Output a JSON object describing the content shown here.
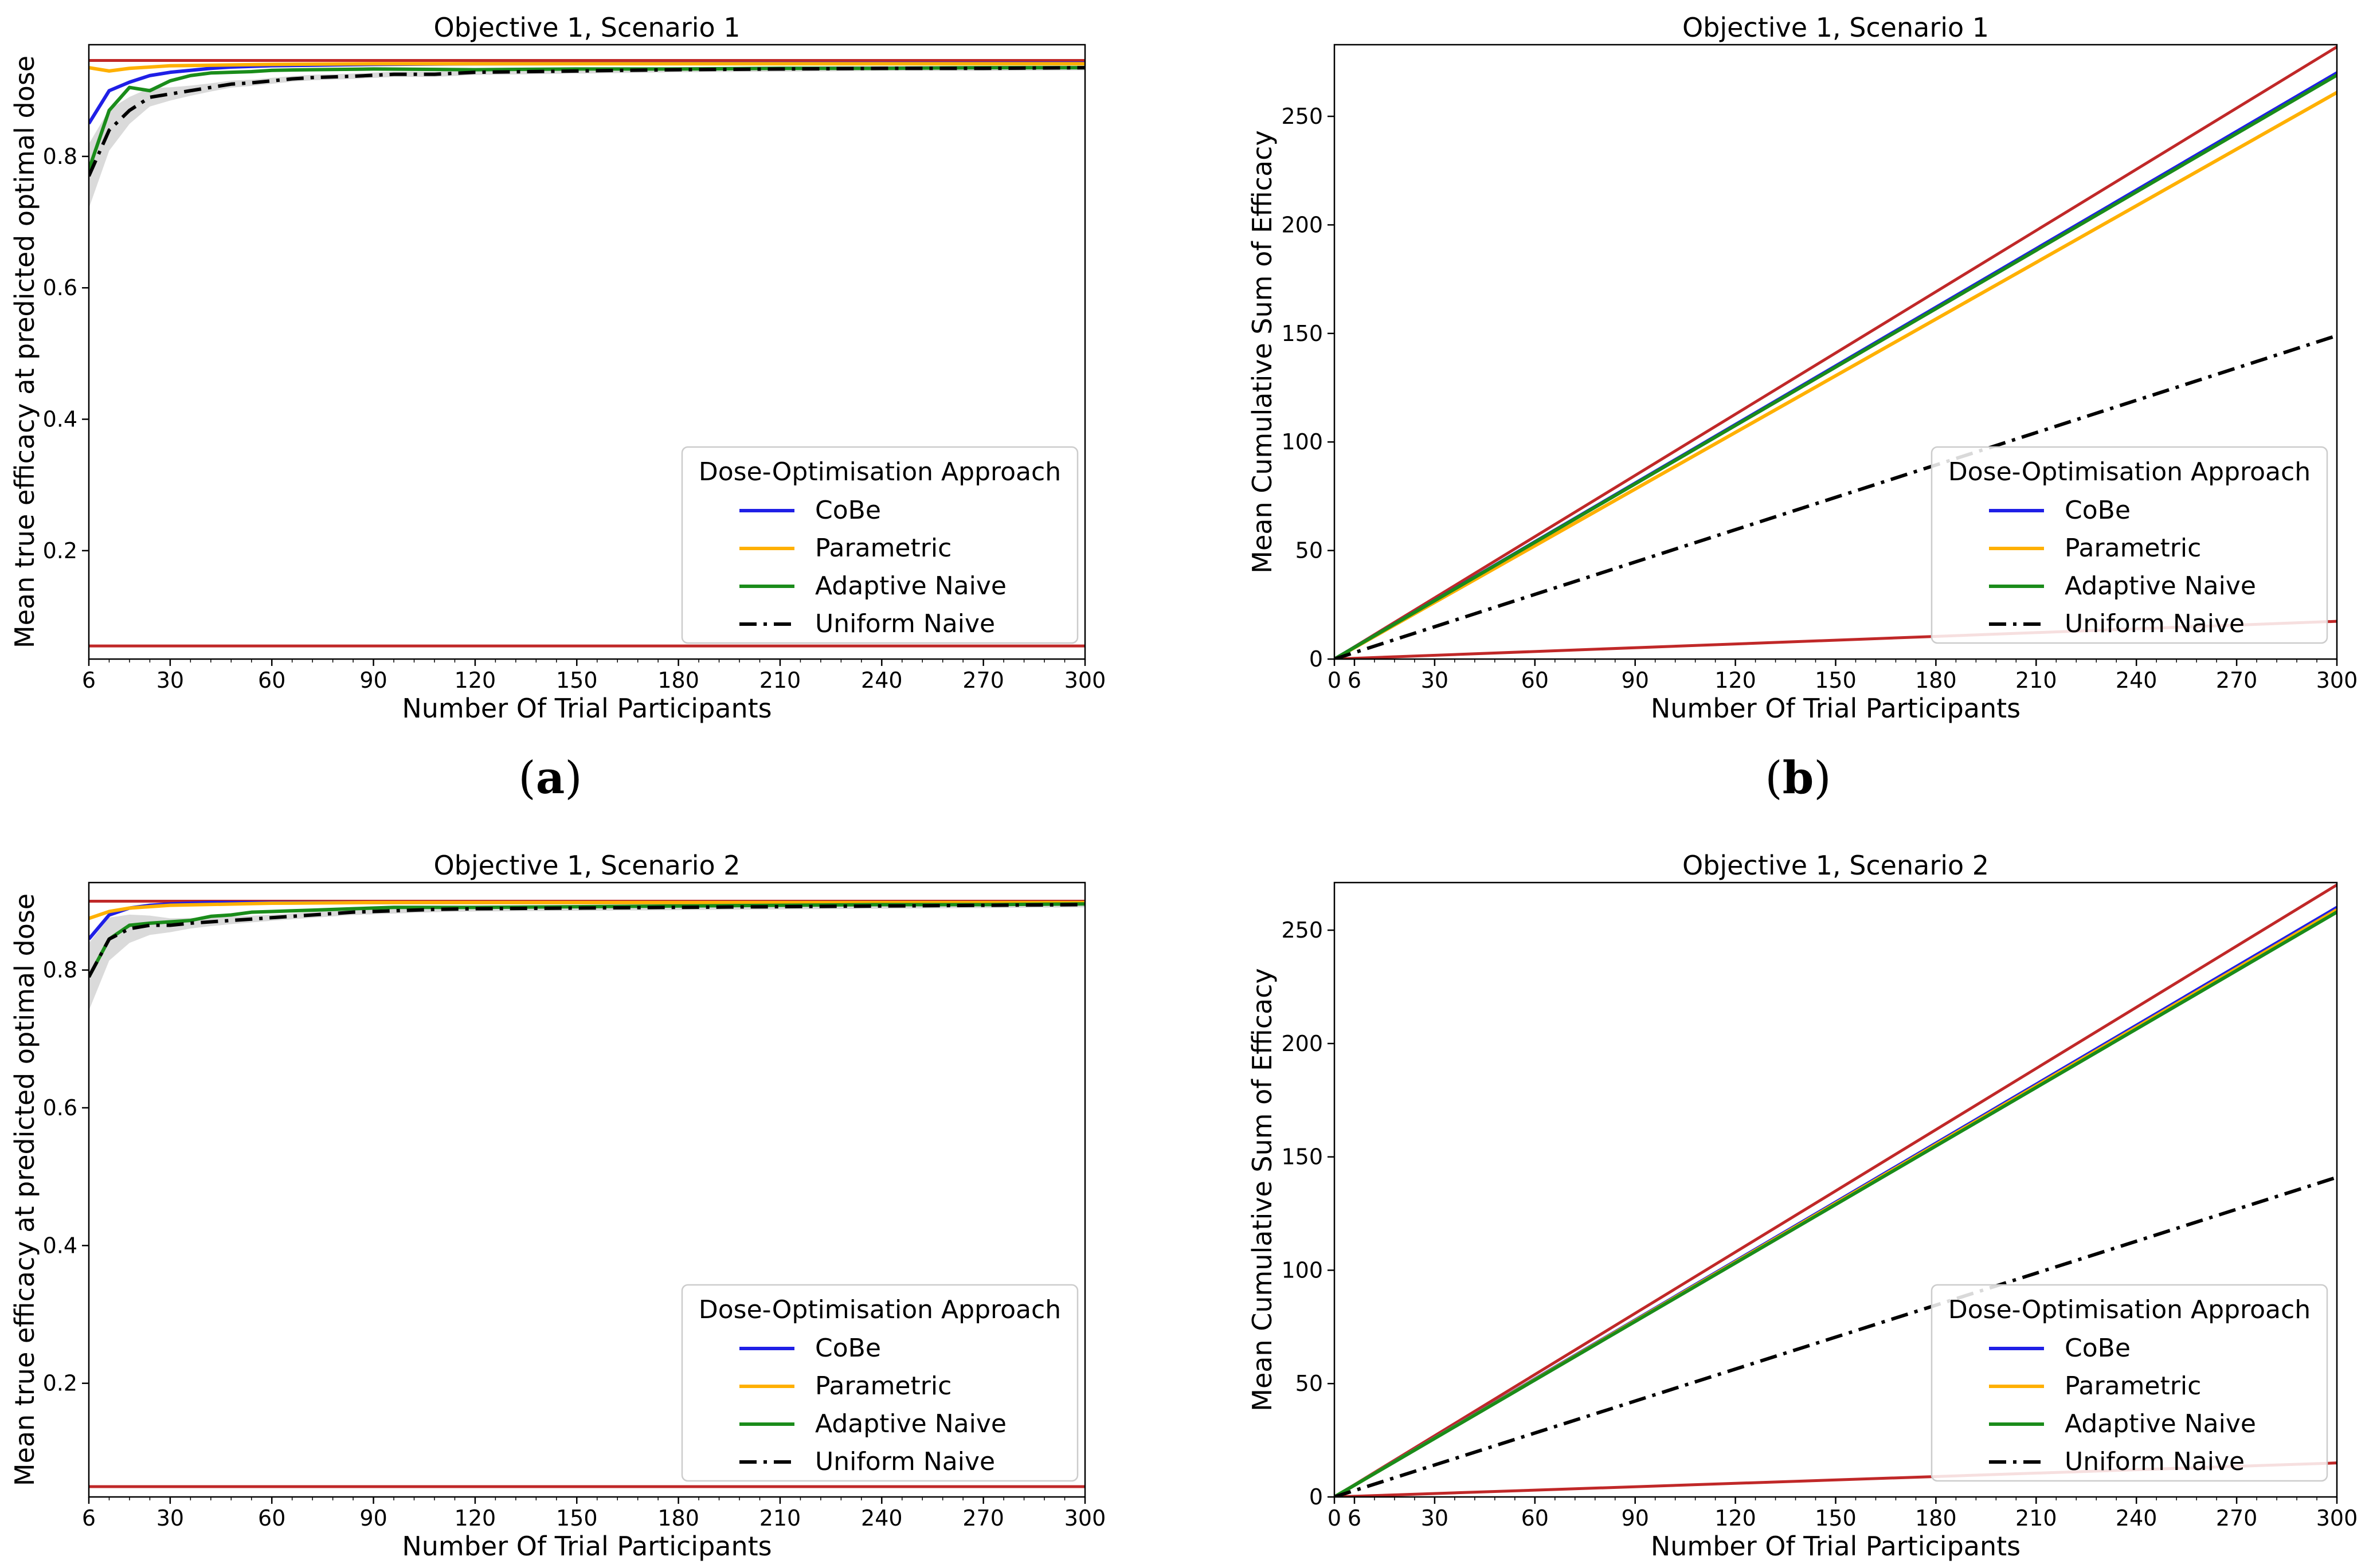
{
  "figure": {
    "subfigure_labels": [
      {
        "open": "(",
        "letter": "a",
        "close": ")"
      },
      {
        "open": "(",
        "letter": "b",
        "close": ")"
      }
    ]
  },
  "legend": {
    "title": "Dose-Optimisation Approach",
    "items": [
      {
        "label": "CoBe",
        "color": "#1f1fe6",
        "dash": "solid"
      },
      {
        "label": "Parametric",
        "color": "#ffb000",
        "dash": "solid"
      },
      {
        "label": "Adaptive Naive",
        "color": "#1a8c1a",
        "dash": "solid"
      },
      {
        "label": "Uniform Naive",
        "color": "#000000",
        "dash": "dashdot"
      }
    ]
  },
  "colors": {
    "reference": "#c02828",
    "band": "#d3d3d3",
    "frame": "#000000"
  },
  "chart_data": [
    {
      "type": "line",
      "title": "Objective 1, Scenario 1",
      "xlabel": "Number Of Trial Participants",
      "ylabel": "Mean true efficacy at predicted optimal dose",
      "xlim": [
        6,
        300
      ],
      "ylim": [
        0.035,
        0.97
      ],
      "xticks": [
        6,
        30,
        60,
        90,
        120,
        150,
        180,
        210,
        240,
        270,
        300
      ],
      "yticks": [
        0.2,
        0.4,
        0.6,
        0.8
      ],
      "reference_lines": [
        0.946,
        0.055
      ],
      "series": [
        {
          "name": "CoBe",
          "x": [
            6,
            12,
            18,
            24,
            30,
            36,
            42,
            48,
            60,
            90,
            120,
            300
          ],
          "y": [
            0.85,
            0.9,
            0.913,
            0.923,
            0.928,
            0.931,
            0.934,
            0.936,
            0.938,
            0.94,
            0.941,
            0.942
          ]
        },
        {
          "name": "Parametric",
          "x": [
            6,
            12,
            18,
            30,
            60,
            90,
            300
          ],
          "y": [
            0.935,
            0.93,
            0.934,
            0.938,
            0.94,
            0.941,
            0.941
          ]
        },
        {
          "name": "Adaptive Naive",
          "x": [
            6,
            12,
            18,
            24,
            30,
            36,
            42,
            48,
            54,
            60,
            72,
            90,
            120,
            150,
            180,
            210,
            240,
            270,
            300
          ],
          "y": [
            0.78,
            0.87,
            0.905,
            0.9,
            0.915,
            0.923,
            0.927,
            0.928,
            0.929,
            0.931,
            0.932,
            0.933,
            0.932,
            0.933,
            0.933,
            0.934,
            0.934,
            0.935,
            0.935
          ]
        },
        {
          "name": "Uniform Naive",
          "x": [
            6,
            12,
            18,
            24,
            30,
            36,
            42,
            48,
            54,
            60,
            66,
            72,
            84,
            96,
            108,
            120,
            150,
            180,
            210,
            240,
            270,
            300
          ],
          "y": [
            0.77,
            0.84,
            0.87,
            0.89,
            0.895,
            0.9,
            0.905,
            0.91,
            0.912,
            0.915,
            0.918,
            0.92,
            0.922,
            0.925,
            0.925,
            0.928,
            0.93,
            0.932,
            0.933,
            0.934,
            0.934,
            0.935
          ]
        }
      ]
    },
    {
      "type": "line",
      "title": "Objective 1, Scenario 1",
      "xlabel": "Number Of Trial Participants",
      "ylabel": "Mean Cumulative Sum of Efficacy",
      "xlim": [
        0,
        300
      ],
      "ylim": [
        0,
        283
      ],
      "xticks": [
        0,
        6,
        30,
        60,
        90,
        120,
        150,
        180,
        210,
        240,
        270,
        300
      ],
      "yticks": [
        0,
        50,
        100,
        150,
        200,
        250
      ],
      "reference_lines_slope": [
        0.94,
        0.058
      ],
      "series": [
        {
          "name": "CoBe",
          "x": [
            0,
            300
          ],
          "y": [
            0,
            270
          ]
        },
        {
          "name": "Parametric",
          "x": [
            0,
            300
          ],
          "y": [
            0,
            261
          ]
        },
        {
          "name": "Adaptive Naive",
          "x": [
            0,
            300
          ],
          "y": [
            0,
            269
          ]
        },
        {
          "name": "Uniform Naive",
          "x": [
            0,
            300
          ],
          "y": [
            0,
            149
          ]
        }
      ]
    },
    {
      "type": "line",
      "title": "Objective 1, Scenario 2",
      "xlabel": "Number Of Trial Participants",
      "ylabel": "Mean true efficacy at predicted optimal dose",
      "xlim": [
        6,
        300
      ],
      "ylim": [
        0.035,
        0.927
      ],
      "xticks": [
        6,
        30,
        60,
        90,
        120,
        150,
        180,
        210,
        240,
        270,
        300
      ],
      "yticks": [
        0.2,
        0.4,
        0.6,
        0.8
      ],
      "reference_lines": [
        0.9,
        0.05
      ],
      "series": [
        {
          "name": "CoBe",
          "x": [
            6,
            12,
            18,
            24,
            30,
            36,
            42,
            60,
            90,
            300
          ],
          "y": [
            0.845,
            0.88,
            0.89,
            0.894,
            0.896,
            0.897,
            0.898,
            0.898,
            0.898,
            0.898
          ]
        },
        {
          "name": "Parametric",
          "x": [
            6,
            12,
            18,
            30,
            60,
            90,
            300
          ],
          "y": [
            0.875,
            0.885,
            0.89,
            0.894,
            0.897,
            0.898,
            0.898
          ]
        },
        {
          "name": "Adaptive Naive",
          "x": [
            6,
            12,
            18,
            24,
            30,
            36,
            42,
            48,
            54,
            60,
            66,
            72,
            84,
            96,
            120,
            150,
            180,
            210,
            240,
            270,
            300
          ],
          "y": [
            0.79,
            0.845,
            0.865,
            0.868,
            0.87,
            0.872,
            0.878,
            0.88,
            0.884,
            0.885,
            0.886,
            0.887,
            0.889,
            0.891,
            0.891,
            0.892,
            0.893,
            0.894,
            0.895,
            0.895,
            0.896
          ]
        },
        {
          "name": "Uniform Naive",
          "x": [
            6,
            12,
            18,
            24,
            30,
            36,
            42,
            48,
            54,
            60,
            66,
            72,
            84,
            96,
            108,
            120,
            150,
            180,
            210,
            240,
            270,
            300
          ],
          "y": [
            0.79,
            0.845,
            0.86,
            0.865,
            0.865,
            0.868,
            0.87,
            0.872,
            0.874,
            0.876,
            0.878,
            0.88,
            0.884,
            0.886,
            0.888,
            0.889,
            0.89,
            0.891,
            0.892,
            0.893,
            0.894,
            0.895
          ]
        }
      ]
    },
    {
      "type": "line",
      "title": "Objective 1, Scenario 2",
      "xlabel": "Number Of Trial Participants",
      "ylabel": "Mean Cumulative Sum of Efficacy",
      "xlim": [
        0,
        300
      ],
      "ylim": [
        0,
        271
      ],
      "xticks": [
        0,
        6,
        30,
        60,
        90,
        120,
        150,
        180,
        210,
        240,
        270,
        300
      ],
      "yticks": [
        0,
        50,
        100,
        150,
        200,
        250
      ],
      "reference_lines_slope": [
        0.9,
        0.05
      ],
      "series": [
        {
          "name": "CoBe",
          "x": [
            0,
            300
          ],
          "y": [
            0,
            260
          ]
        },
        {
          "name": "Parametric",
          "x": [
            0,
            300
          ],
          "y": [
            0,
            259
          ]
        },
        {
          "name": "Adaptive Naive",
          "x": [
            0,
            300
          ],
          "y": [
            0,
            258
          ]
        },
        {
          "name": "Uniform Naive",
          "x": [
            0,
            300
          ],
          "y": [
            0,
            141
          ]
        }
      ]
    }
  ]
}
